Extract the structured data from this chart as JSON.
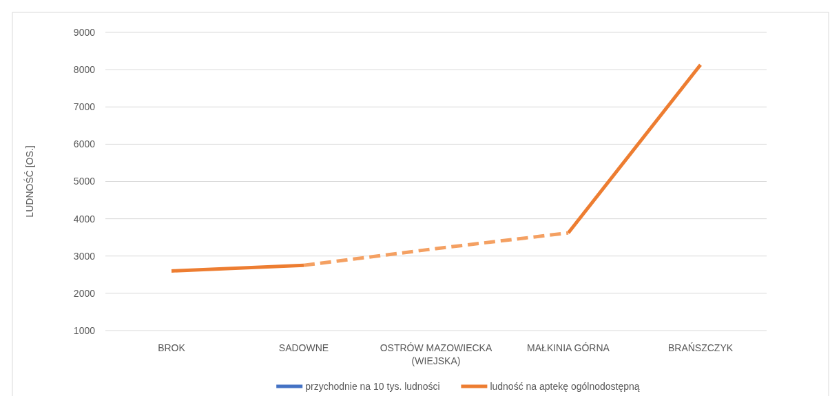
{
  "chart_data": {
    "type": "line",
    "ylabel": "LUDNOŚĆ [OS.]",
    "categories": [
      "BROK",
      "SADOWNE",
      "OSTRÓW MAZOWIECKA (WIEJSKA)",
      "MAŁKINIA GÓRNA",
      "BRAŃSZCZYK"
    ],
    "series": [
      {
        "name": "przychodnie na 10 tys. ludności",
        "color": "#4472c4",
        "values": [
          null,
          null,
          null,
          null,
          null
        ]
      },
      {
        "name": "ludność na aptekę ogólnodostępną",
        "color": "#ed7d31",
        "values": [
          2600,
          2750,
          null,
          3620,
          8130
        ]
      },
      {
        "color": "#f4a062",
        "values": [
          null,
          2750,
          3200,
          3620,
          null
        ],
        "line_style": "dashed"
      }
    ],
    "ylim": [
      1000,
      9000
    ],
    "yticks": [
      1000,
      2000,
      3000,
      4000,
      5000,
      6000,
      7000,
      8000,
      9000
    ],
    "grid": "y",
    "legend": "bottom",
    "line_style": "solid",
    "marker": "none"
  }
}
